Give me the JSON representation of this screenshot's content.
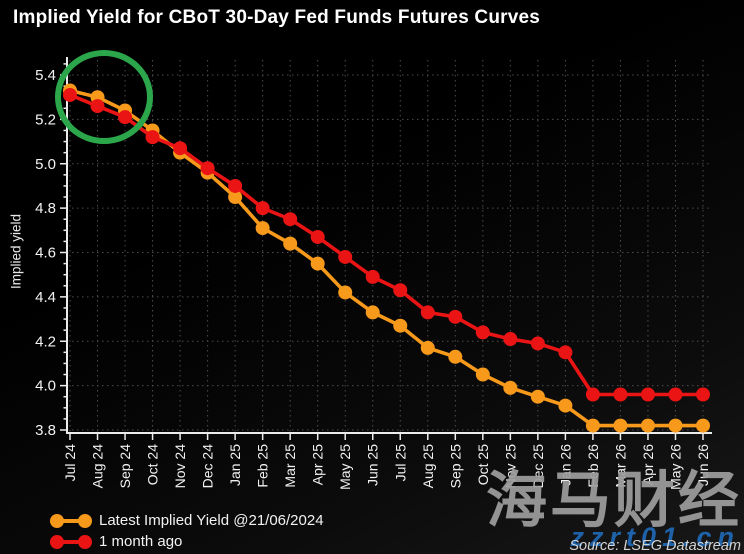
{
  "title": "Implied Yield for CBoT 30-Day Fed Funds Futures Curves",
  "source": "Source: LSEG Datastream",
  "watermark": {
    "cjk": "海马财经",
    "url": "zzrt01.cn"
  },
  "chart_data": {
    "type": "line",
    "title": "Implied Yield for CBoT 30-Day Fed Funds Futures Curves",
    "xlabel": "",
    "ylabel": "Implied yield",
    "ylim": [
      3.8,
      5.4
    ],
    "y_ticks": [
      3.8,
      4.0,
      4.2,
      4.4,
      4.6,
      4.8,
      5.0,
      5.2,
      5.4
    ],
    "grid": "dotted",
    "legend_position": "bottom-left",
    "categories": [
      "Jul 24",
      "Aug 24",
      "Sep 24",
      "Oct 24",
      "Nov 24",
      "Dec 24",
      "Jan 25",
      "Feb 25",
      "Mar 25",
      "Apr 25",
      "May 25",
      "Jun 25",
      "Jul 25",
      "Aug 25",
      "Sep 25",
      "Oct 25",
      "Nov 25",
      "Dec 25",
      "Jan 26",
      "Feb 26",
      "Mar 26",
      "Apr 26",
      "May 26",
      "Jun 26"
    ],
    "series": [
      {
        "name": "Latest Implied Yield @21/06/2024",
        "color": "#F79A1C",
        "values": [
          5.33,
          5.3,
          5.24,
          5.15,
          5.05,
          4.96,
          4.85,
          4.71,
          4.64,
          4.55,
          4.42,
          4.33,
          4.27,
          4.17,
          4.13,
          4.05,
          3.99,
          3.95,
          3.91,
          3.82,
          3.82,
          3.82,
          3.82,
          3.82
        ]
      },
      {
        "name": "1 month ago",
        "color": "#EA1414",
        "values": [
          5.31,
          5.26,
          5.21,
          5.12,
          5.07,
          4.98,
          4.9,
          4.8,
          4.75,
          4.67,
          4.58,
          4.49,
          4.43,
          4.33,
          4.31,
          4.24,
          4.21,
          4.19,
          4.15,
          3.96,
          3.96,
          3.96,
          3.96,
          3.96
        ]
      }
    ],
    "annotation": {
      "shape": "ellipse",
      "color": "#2BA64A",
      "note": "green circle highlighting the Jul 24 - Sep 24 points"
    }
  }
}
